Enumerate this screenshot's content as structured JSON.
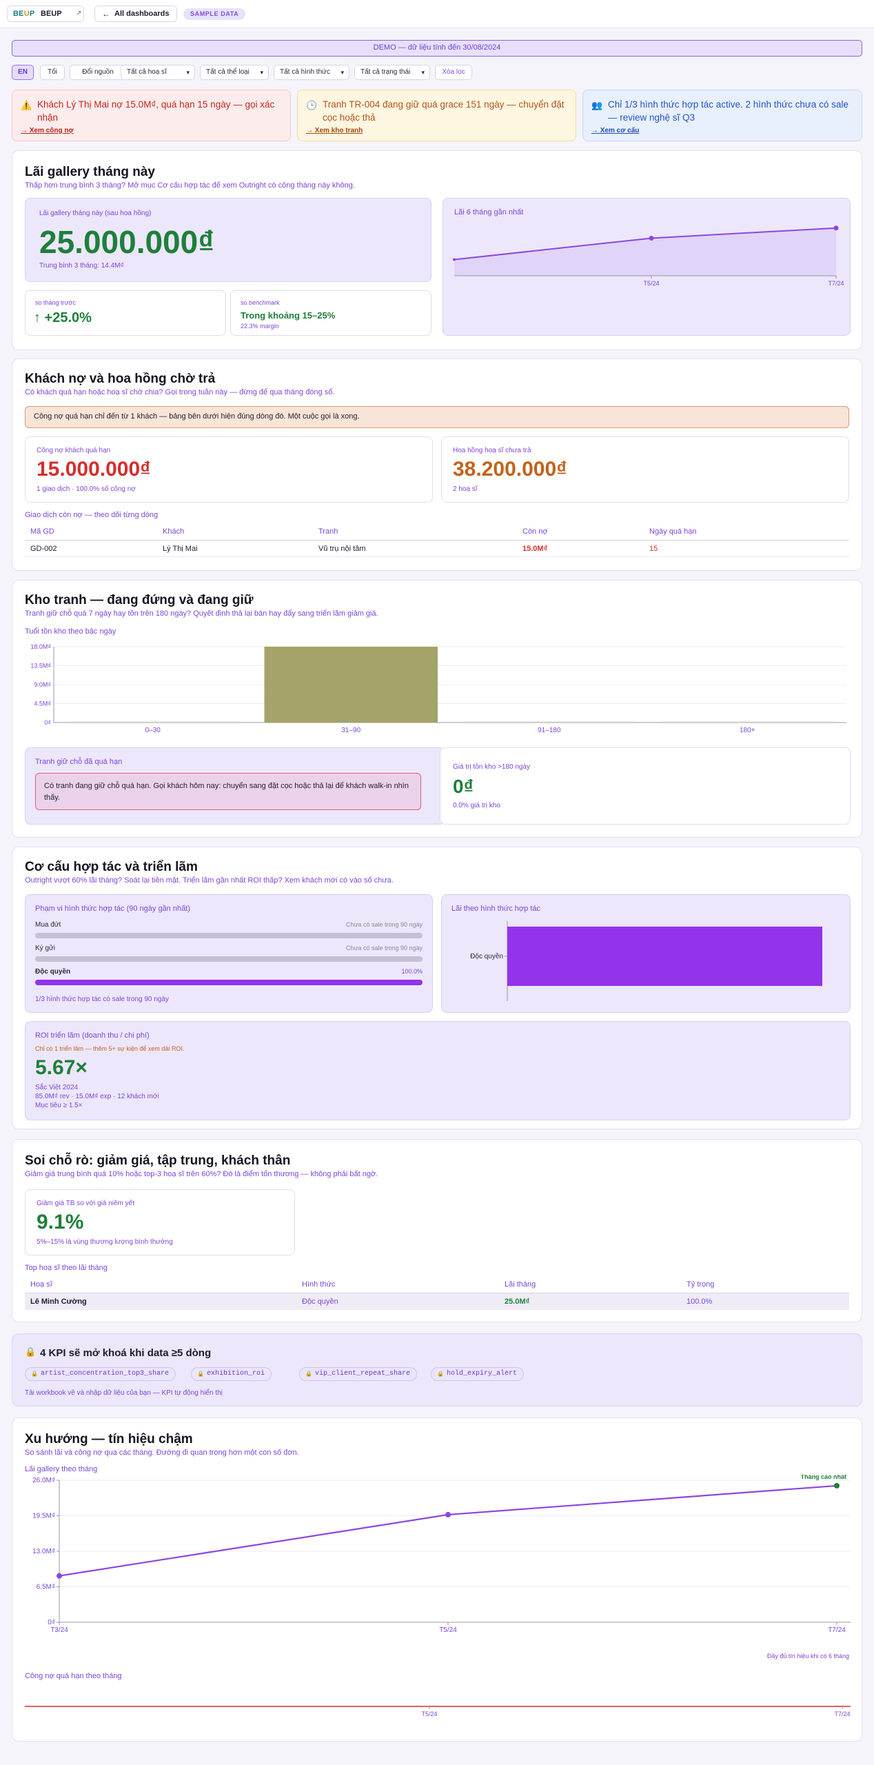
{
  "topbar": {
    "logo_mark_a": "BE",
    "logo_mark_b": "U",
    "logo_mark_c": "P",
    "logo_name": "BEUP",
    "logo_ext": "↗",
    "back_icon": "←",
    "back_label": "All dashboards",
    "sample_badge": "SAMPLE DATA"
  },
  "demo_banner": "DEMO — dữ liệu tính đến 30/08/2024",
  "filters": {
    "lang": "EN",
    "dark": "Tối",
    "source": "Đổi nguồn",
    "artist": "Tất cả hoạ sĩ",
    "genre": "Tất cả thể loại",
    "form": "Tất cả hình thức",
    "status": "Tất cả trạng thái",
    "clear": "Xóa lọc",
    "caret": "▾"
  },
  "alerts": [
    {
      "icon": "⚠️",
      "text": "Khách Lý Thị Mai nợ 15.0M₫, quá hạn 15 ngày — gọi xác nhận",
      "link": "→ Xem công nợ"
    },
    {
      "icon": "🕒",
      "text": "Tranh TR-004 đang giữ quá grace 151 ngày — chuyển đặt cọc hoặc thả",
      "link": "→ Xem kho tranh"
    },
    {
      "icon": "👥",
      "text": "Chỉ 1/3 hình thức hợp tác active. 2 hình thức chưa có sale — review nghệ sĩ Q3",
      "link": "→ Xem cơ cấu"
    }
  ],
  "profit": {
    "title": "Lãi gallery tháng này",
    "subtitle": "Thấp hơn trung bình 3 tháng? Mở mục Cơ cấu hợp tác để xem Outright có công tháng này không.",
    "big_label": "Lãi gallery tháng này (sau hoa hồng)",
    "big_value": "25.000.000₫",
    "avg": "Trung bình 3 tháng: 14.4M₫",
    "prev_label": "so tháng trước",
    "prev_value": "↑ +25.0%",
    "bench_label": "so benchmark",
    "bench_value": "Trong khoảng 15–25%",
    "bench_note": "22.3% margin",
    "spark_title": "Lãi 6 tháng gần nhất",
    "spark_ticks": [
      "T5/24",
      "T7/24"
    ],
    "spark_values": [
      8.5,
      19.7,
      25.0
    ]
  },
  "debt": {
    "title": "Khách nợ và hoa hồng chờ trả",
    "subtitle": "Có khách quá hạn hoặc hoạ sĩ chờ chia? Gọi trong tuần này — đừng để qua tháng đóng sổ.",
    "note": "Công nợ quá hạn chỉ đến từ 1 khách — bảng bên dưới hiện đúng dòng đó. Một cuộc gọi là xong.",
    "overdue_label": "Công nợ khách quá hạn",
    "overdue_value": "15.000.000₫",
    "overdue_note": "1 giao dịch · 100.0% số công nợ",
    "comm_label": "Hoa hồng hoạ sĩ chưa trả",
    "comm_value": "38.200.000₫",
    "comm_note": "2 hoạ sĩ",
    "table_title": "Giao dịch còn nợ — theo dõi từng dòng",
    "headers": [
      "Mã GD",
      "Khách",
      "Tranh",
      "Còn nợ",
      "Ngày quá hạn"
    ],
    "row": [
      "GD-002",
      "Lý Thị Mai",
      "Vũ trụ nội tâm",
      "15.0M₫",
      "15"
    ]
  },
  "stock": {
    "title": "Kho tranh — đang đứng và đang giữ",
    "subtitle": "Tranh giữ chỗ quá 7 ngày hay tồn trên 180 ngày? Quyết định thả lại bán hay đẩy sang triển lãm giảm giá.",
    "chart_title": "Tuổi tồn kho theo bậc ngày",
    "hold_title": "Tranh giữ chỗ đã quá hạn",
    "hold_alert": "Có tranh đang giữ chỗ quá hạn. Gọi khách hôm nay: chuyển sang đặt cọc hoặc thả lại để khách walk-in nhìn thấy.",
    "old_label": "Giá trị tồn kho >180 ngày",
    "old_value": "0₫",
    "old_note": "0.0% giá trị kho"
  },
  "chart_data": [
    {
      "type": "bar",
      "title": "Tuổi tồn kho theo bậc ngày",
      "categories": [
        "0–30",
        "31–90",
        "91–180",
        "180+"
      ],
      "values": [
        0,
        18.0,
        0,
        0
      ],
      "ylim": [
        0,
        18.0
      ],
      "yticks": [
        "0₫",
        "4.5M₫",
        "9.0M₫",
        "13.5M₫",
        "18.0M₫"
      ],
      "color": "#a4a36a"
    },
    {
      "type": "bar",
      "title": "Lãi theo hình thức hợp tác",
      "categories": [
        "Độc quyền"
      ],
      "values": [
        25.0
      ],
      "color": "#9333ea"
    },
    {
      "type": "line",
      "title": "Lãi gallery theo tháng",
      "x": [
        "T3/24",
        "T5/24",
        "T7/24"
      ],
      "values": [
        8.5,
        19.7,
        25.0
      ],
      "ylim": [
        0,
        26.0
      ],
      "yticks": [
        "0₫",
        "6.5M₫",
        "13.0M₫",
        "19.5M₫",
        "26.0M₫"
      ],
      "annotation": "Tháng cao nhất"
    },
    {
      "type": "line",
      "title": "Công nợ quá hạn theo tháng",
      "x": [
        "T5/24",
        "T7/24"
      ],
      "values": [
        0,
        0
      ]
    }
  ],
  "mix": {
    "title": "Cơ cấu hợp tác và triển lãm",
    "subtitle": "Outright vượt 60% lãi tháng? Soát lại tiền mặt. Triển lãm gần nhất ROI thấp? Xem khách mới có vào sổ chưa.",
    "scope_title": "Phạm vi hình thức hợp tác (90 ngày gần nhất)",
    "rows": [
      {
        "name": "Mua đứt",
        "status": "Chưa có sale trong 90 ngày",
        "fill": 0
      },
      {
        "name": "Ký gửi",
        "status": "Chưa có sale trong 90 ngày",
        "fill": 0
      },
      {
        "name": "Độc quyền",
        "status": "100.0%",
        "fill": 1
      }
    ],
    "scope_note": "1/3 hình thức hợp tác có sale trong 90 ngày",
    "chart_title": "Lãi theo hình thức hợp tác",
    "roi_title": "ROI triển lãm (doanh thu / chi phí)",
    "roi_warn": "Chỉ có 1 triển lãm — thêm 5+ sự kiện để xem dải ROI.",
    "roi_value": "5.67×",
    "roi_name": "Sắc Việt 2024",
    "roi_detail": "85.0M₫ rev · 15.0M₫ exp · 12 khách mới",
    "roi_target": "Mục tiêu ≥ 1.5×"
  },
  "leak": {
    "title": "Soi chỗ rò: giảm giá, tập trung, khách thân",
    "subtitle": "Giảm giá trung bình quá 10% hoặc top-3 hoạ sĩ trên 60%? Đó là điểm tổn thương — không phải bất ngờ.",
    "disc_label": "Giảm giá TB so với giá niêm yết",
    "disc_value": "9.1%",
    "disc_note": "5%–15% là vùng thương lượng bình thường",
    "table_title": "Top hoạ sĩ theo lãi tháng",
    "headers": [
      "Hoạ sĩ",
      "Hình thức",
      "Lãi tháng",
      "Tỷ trọng"
    ],
    "row": [
      "Lê Minh Cường",
      "Độc quyền",
      "25.0M₫",
      "100.0%"
    ]
  },
  "locked": {
    "icon": "🔒",
    "title": "4 KPI sẽ mở khoá khi data ≥5 dòng",
    "chips": [
      "artist_concentration_top3_share",
      "exhibition_roi",
      "vip_client_repeat_share",
      "hold_expiry_alert"
    ],
    "chip_icon": "🔒",
    "note": "Tải workbook về và nhập dữ liệu của bạn — KPI tự động hiển thị"
  },
  "trend": {
    "title": "Xu hướng — tín hiệu chậm",
    "subtitle": "So sánh lãi và công nợ qua các tháng. Đường đi quan trọng hơn một con số đơn.",
    "chart1_title": "Lãi gallery theo tháng",
    "full_note": "Đầy đủ tín hiệu khi có 6 tháng",
    "chart2_title": "Công nợ quá hạn theo tháng"
  }
}
